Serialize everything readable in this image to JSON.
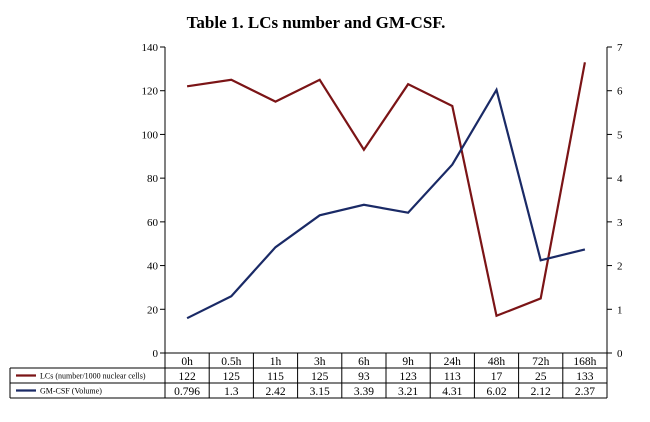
{
  "chart_data": {
    "type": "line",
    "title": "Table 1. LCs number and GM-CSF.",
    "categories": [
      "0h",
      "0.5h",
      "1h",
      "3h",
      "6h",
      "9h",
      "24h",
      "48h",
      "72h",
      "168h"
    ],
    "y_left": {
      "range": [
        0,
        140
      ],
      "ticks": [
        0,
        20,
        40,
        60,
        80,
        100,
        120,
        140
      ]
    },
    "y_right": {
      "range": [
        0,
        7
      ],
      "ticks": [
        0,
        1,
        2,
        3,
        4,
        5,
        6,
        7
      ]
    },
    "series": [
      {
        "name": "LCs (number/1000 nuclear cells)",
        "axis": "left",
        "color": "#7b1416",
        "values": [
          122,
          125,
          115,
          125,
          93,
          123,
          113,
          17,
          25,
          133
        ],
        "labels": [
          "122",
          "125",
          "115",
          "125",
          "93",
          "123",
          "113",
          "17",
          "25",
          "133"
        ]
      },
      {
        "name": "GM-CSF (Volume)",
        "axis": "right",
        "color": "#1a2a66",
        "values": [
          0.796,
          1.3,
          2.42,
          3.15,
          3.39,
          3.21,
          4.31,
          6.02,
          2.12,
          2.37
        ],
        "labels": [
          "0.796",
          "1.3",
          "2.42",
          "3.15",
          "3.39",
          "3.21",
          "4.31",
          "6.02",
          "2.12",
          "2.37"
        ]
      }
    ],
    "grid": false,
    "legend": "bottom-table"
  }
}
